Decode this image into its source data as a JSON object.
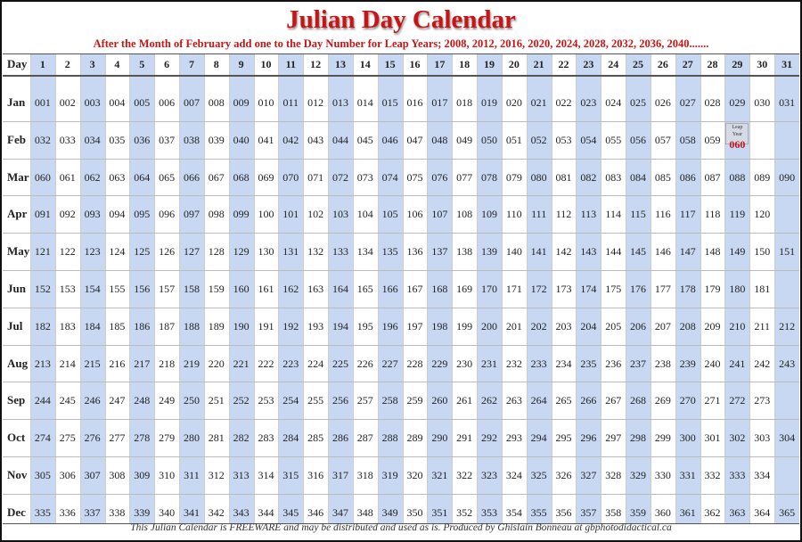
{
  "header": {
    "title": "Julian Day Calendar",
    "subtitle": "After the Month of February add one to the Day Number for Leap Years; 2008, 2012, 2016, 2020, 2024, 2028, 2032, 2036, 2040......."
  },
  "table": {
    "columns": [
      "Day",
      "1",
      "2",
      "3",
      "4",
      "5",
      "6",
      "7",
      "8",
      "9",
      "10",
      "11",
      "12",
      "13",
      "14",
      "15",
      "16",
      "17",
      "18",
      "19",
      "20",
      "21",
      "22",
      "23",
      "24",
      "25",
      "26",
      "27",
      "28",
      "29",
      "30",
      "31"
    ],
    "rows": [
      {
        "month": "Jan",
        "days": [
          "001",
          "002",
          "003",
          "004",
          "005",
          "006",
          "007",
          "008",
          "009",
          "010",
          "011",
          "012",
          "013",
          "014",
          "015",
          "016",
          "017",
          "018",
          "019",
          "020",
          "021",
          "022",
          "023",
          "024",
          "025",
          "026",
          "027",
          "028",
          "029",
          "030",
          "031"
        ]
      },
      {
        "month": "Feb",
        "days": [
          "032",
          "033",
          "034",
          "035",
          "036",
          "037",
          "038",
          "039",
          "040",
          "041",
          "042",
          "043",
          "044",
          "045",
          "046",
          "047",
          "048",
          "049",
          "050",
          "051",
          "052",
          "053",
          "054",
          "055",
          "056",
          "057",
          "058",
          "059"
        ],
        "leap": {
          "label": "Leap Year",
          "day": "060"
        }
      },
      {
        "month": "Mar",
        "days": [
          "060",
          "061",
          "062",
          "063",
          "064",
          "065",
          "066",
          "067",
          "068",
          "069",
          "070",
          "071",
          "072",
          "073",
          "074",
          "075",
          "076",
          "077",
          "078",
          "079",
          "080",
          "081",
          "082",
          "083",
          "084",
          "085",
          "086",
          "087",
          "088",
          "089",
          "090"
        ]
      },
      {
        "month": "Apr",
        "days": [
          "091",
          "092",
          "093",
          "094",
          "095",
          "096",
          "097",
          "098",
          "099",
          "100",
          "101",
          "102",
          "103",
          "104",
          "105",
          "106",
          "107",
          "108",
          "109",
          "110",
          "111",
          "112",
          "113",
          "114",
          "115",
          "116",
          "117",
          "118",
          "119",
          "120"
        ]
      },
      {
        "month": "May",
        "days": [
          "121",
          "122",
          "123",
          "124",
          "125",
          "126",
          "127",
          "128",
          "129",
          "130",
          "131",
          "132",
          "133",
          "134",
          "135",
          "136",
          "137",
          "138",
          "139",
          "140",
          "141",
          "142",
          "143",
          "144",
          "145",
          "146",
          "147",
          "148",
          "149",
          "150",
          "151"
        ]
      },
      {
        "month": "Jun",
        "days": [
          "152",
          "153",
          "154",
          "155",
          "156",
          "157",
          "158",
          "159",
          "160",
          "161",
          "162",
          "163",
          "164",
          "165",
          "166",
          "167",
          "168",
          "169",
          "170",
          "171",
          "172",
          "173",
          "174",
          "175",
          "176",
          "177",
          "178",
          "179",
          "180",
          "181"
        ]
      },
      {
        "month": "Jul",
        "days": [
          "182",
          "183",
          "184",
          "185",
          "186",
          "187",
          "188",
          "189",
          "190",
          "191",
          "192",
          "193",
          "194",
          "195",
          "196",
          "197",
          "198",
          "199",
          "200",
          "201",
          "202",
          "203",
          "204",
          "205",
          "206",
          "207",
          "208",
          "209",
          "210",
          "211",
          "212"
        ]
      },
      {
        "month": "Aug",
        "days": [
          "213",
          "214",
          "215",
          "216",
          "217",
          "218",
          "219",
          "220",
          "221",
          "222",
          "223",
          "224",
          "225",
          "226",
          "227",
          "228",
          "229",
          "230",
          "231",
          "232",
          "233",
          "234",
          "235",
          "236",
          "237",
          "238",
          "239",
          "240",
          "241",
          "242",
          "243"
        ]
      },
      {
        "month": "Sep",
        "days": [
          "244",
          "245",
          "246",
          "247",
          "248",
          "249",
          "250",
          "251",
          "252",
          "253",
          "254",
          "255",
          "256",
          "257",
          "258",
          "259",
          "260",
          "261",
          "262",
          "263",
          "264",
          "265",
          "266",
          "267",
          "268",
          "269",
          "270",
          "271",
          "272",
          "273"
        ]
      },
      {
        "month": "Oct",
        "days": [
          "274",
          "275",
          "276",
          "277",
          "278",
          "279",
          "280",
          "281",
          "282",
          "283",
          "284",
          "285",
          "286",
          "287",
          "288",
          "289",
          "290",
          "291",
          "292",
          "293",
          "294",
          "295",
          "296",
          "297",
          "298",
          "299",
          "300",
          "301",
          "302",
          "303",
          "304"
        ]
      },
      {
        "month": "Nov",
        "days": [
          "305",
          "306",
          "307",
          "308",
          "309",
          "310",
          "311",
          "312",
          "313",
          "314",
          "315",
          "316",
          "317",
          "318",
          "319",
          "320",
          "321",
          "322",
          "323",
          "324",
          "325",
          "326",
          "327",
          "328",
          "329",
          "330",
          "331",
          "332",
          "333",
          "334"
        ]
      },
      {
        "month": "Dec",
        "days": [
          "335",
          "336",
          "337",
          "338",
          "339",
          "340",
          "341",
          "342",
          "343",
          "344",
          "345",
          "346",
          "347",
          "348",
          "349",
          "350",
          "351",
          "352",
          "353",
          "354",
          "355",
          "356",
          "357",
          "358",
          "359",
          "360",
          "361",
          "362",
          "363",
          "364",
          "365"
        ]
      }
    ]
  },
  "footer": "This Julian Calendar is FREEWARE and may be distributed and used as is. Produced by Ghislain Bonneau at gbphotodidactical.ca"
}
